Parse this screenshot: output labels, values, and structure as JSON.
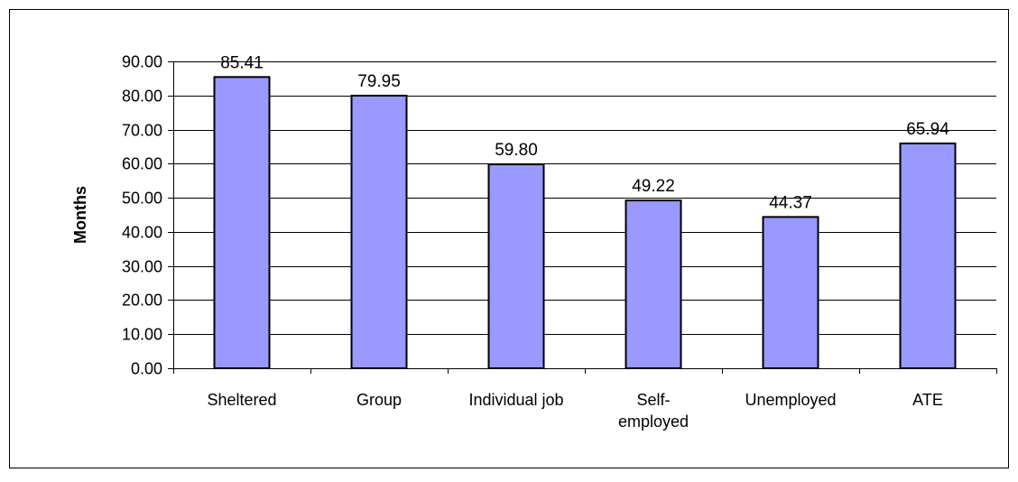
{
  "chart_data": {
    "type": "bar",
    "title": "",
    "xlabel": "",
    "ylabel": "Months",
    "ylim": [
      0,
      90
    ],
    "ytick_step": 10,
    "ytick_labels": [
      "0.00",
      "10.00",
      "20.00",
      "30.00",
      "40.00",
      "50.00",
      "60.00",
      "70.00",
      "80.00",
      "90.00"
    ],
    "grid": "horizontal",
    "legend": "none",
    "categories": [
      [
        "Sheltered"
      ],
      [
        "Group"
      ],
      [
        "Individual job"
      ],
      [
        "Self-",
        "employed"
      ],
      [
        "Unemployed"
      ],
      [
        "ATE"
      ]
    ],
    "values": [
      85.41,
      79.95,
      59.8,
      49.22,
      44.37,
      65.94
    ],
    "value_labels": [
      "85.41",
      "79.95",
      "59.80",
      "49.22",
      "44.37",
      "65.94"
    ],
    "colors": {
      "bar_fill": "#9999ff",
      "bar_stroke": "#000000",
      "grid": "#000000",
      "frame": "#000000"
    }
  }
}
